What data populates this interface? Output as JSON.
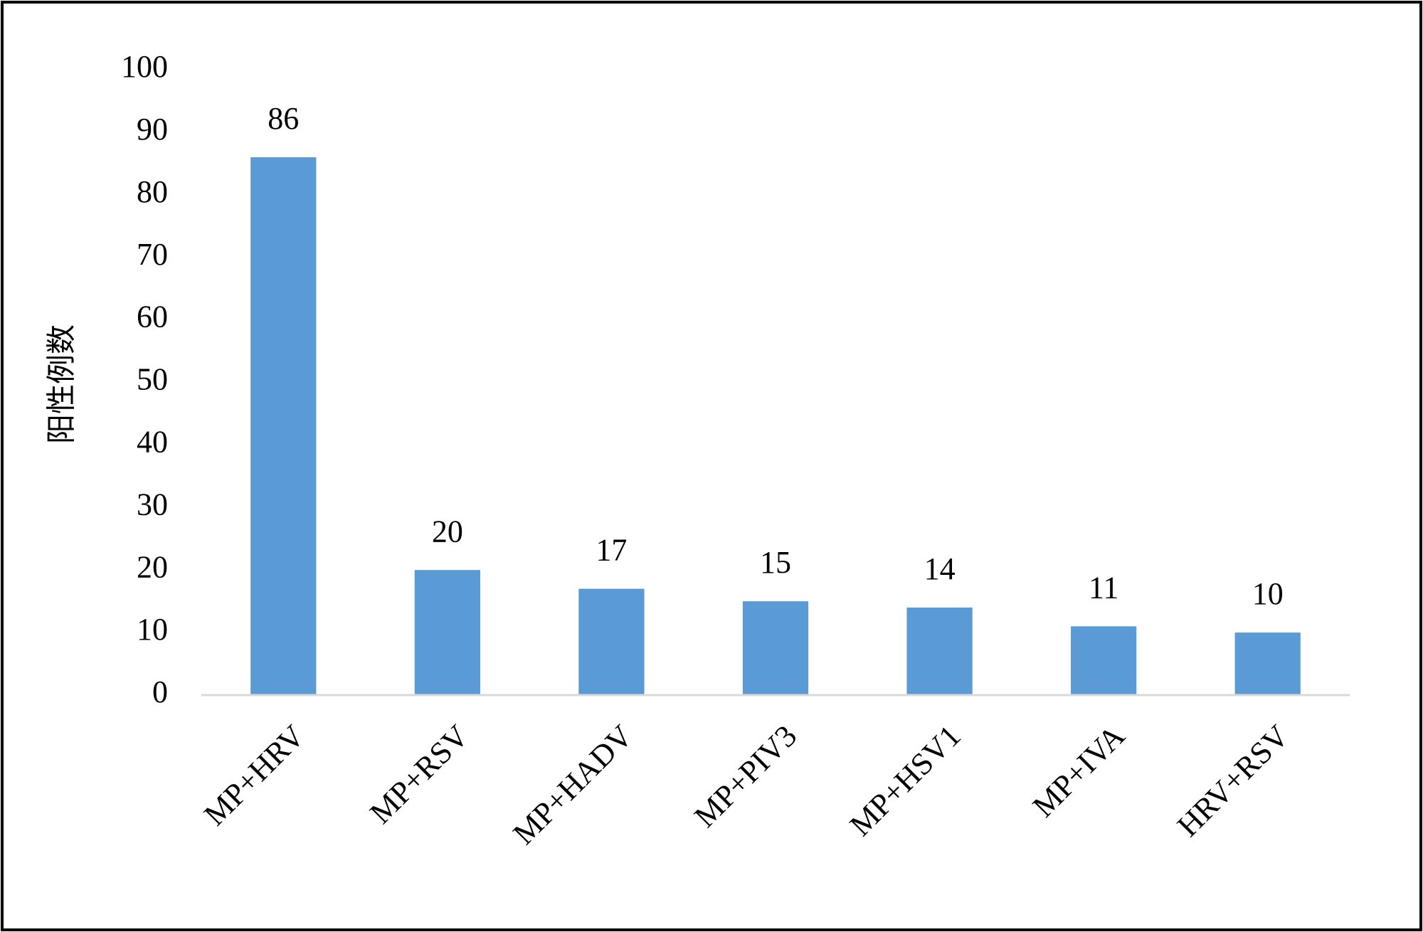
{
  "chart_data": {
    "type": "bar",
    "y_label": "阳性例数",
    "categories": [
      "MP+HRV",
      "MP+RSV",
      "MP+HADV",
      "MP+PIV3",
      "MP+HSV1",
      "MP+IVA",
      "HRV+RSV"
    ],
    "values": [
      86,
      20,
      17,
      15,
      14,
      11,
      10
    ],
    "color": "#5b9bd5",
    "ylim": [
      0,
      100
    ],
    "yticks": [
      0,
      10,
      20,
      30,
      40,
      50,
      60,
      70,
      80,
      90,
      100
    ],
    "grid": false
  }
}
